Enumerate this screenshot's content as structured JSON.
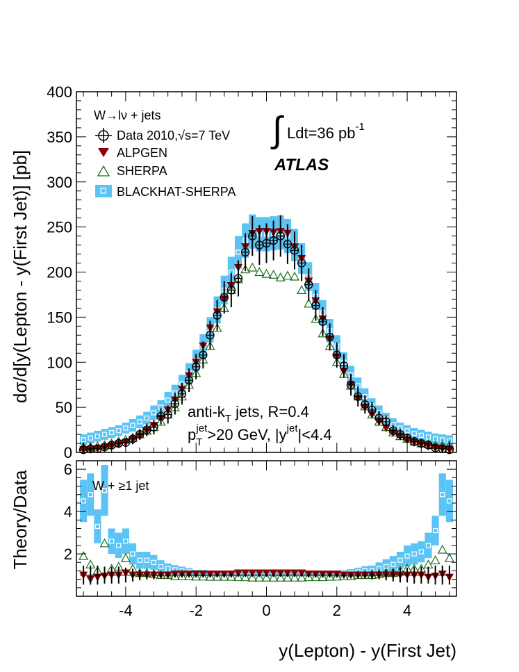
{
  "colors": {
    "data": "#000000",
    "alpgen": "#8b0000",
    "sherpa": "#1a6e1a",
    "blackhat": "#5bc4f5",
    "blackhat_marker": "#ffffff"
  },
  "legend": {
    "process_pre": "W",
    "process_post": "lν + jets",
    "data_label_pre": "Data 2010,",
    "data_label_sqrt": "√s=7 TeV",
    "alpgen_label": "ALPGEN",
    "sherpa_label": "SHERPA",
    "blackhat_label": "BLACKHAT-SHERPA"
  },
  "lumi": {
    "text": "Ldt=36 pb",
    "exponent": "-1"
  },
  "experiment": "ATLAS",
  "jets": {
    "line1": "anti-k",
    "line1_sub": "T",
    "line1_post": " jets, R=0.4",
    "line2_p": "p",
    "line2_sub": "T",
    "line2_sup": "jet",
    "line2_mid": ">20 GeV, |y",
    "line2_sup2": "jet",
    "line2_post": "|<4.4"
  },
  "ratio_label": "W + ≥1 jet",
  "chart_data": [
    {
      "type": "scatter",
      "panel": "main",
      "ylabel": "dσ/d[y(Lepton - y(First Jet)] [pb]",
      "xlim": [
        -5.4,
        5.4
      ],
      "ylim": [
        0,
        400
      ],
      "yticks": [
        "0",
        "50",
        "100",
        "150",
        "200",
        "250",
        "300",
        "350",
        "400"
      ],
      "x": [
        -5.2,
        -5.0,
        -4.8,
        -4.6,
        -4.4,
        -4.2,
        -4.0,
        -3.8,
        -3.6,
        -3.4,
        -3.2,
        -3.0,
        -2.8,
        -2.6,
        -2.4,
        -2.2,
        -2.0,
        -1.8,
        -1.6,
        -1.4,
        -1.2,
        -1.0,
        -0.8,
        -0.6,
        -0.4,
        -0.2,
        0.0,
        0.2,
        0.4,
        0.6,
        0.8,
        1.0,
        1.2,
        1.4,
        1.6,
        1.8,
        2.0,
        2.2,
        2.4,
        2.6,
        2.8,
        3.0,
        3.2,
        3.4,
        3.6,
        3.8,
        4.0,
        4.2,
        4.4,
        4.6,
        4.8,
        5.0,
        5.2
      ],
      "series": [
        {
          "name": "Data 2010,√s=7 TeV",
          "values": [
            3,
            4,
            4,
            6,
            8,
            10,
            11,
            15,
            20,
            25,
            28,
            40,
            42,
            54,
            65,
            80,
            95,
            108,
            130,
            152,
            172,
            180,
            193,
            222,
            240,
            230,
            232,
            235,
            240,
            231,
            224,
            210,
            186,
            163,
            145,
            128,
            108,
            96,
            75,
            62,
            53,
            47,
            38,
            34,
            24,
            20,
            16,
            12,
            10,
            8,
            5,
            4,
            3
          ],
          "err": [
            8,
            6,
            5,
            5,
            5,
            5,
            5,
            6,
            6,
            7,
            8,
            9,
            10,
            12,
            12,
            13,
            14,
            15,
            16,
            17,
            18,
            19,
            20,
            21,
            22,
            22,
            22,
            22,
            23,
            22,
            21,
            20,
            18,
            17,
            16,
            15,
            14,
            13,
            12,
            11,
            10,
            9,
            8,
            7,
            6,
            6,
            5,
            5,
            5,
            5,
            5,
            6,
            8
          ]
        },
        {
          "name": "ALPGEN",
          "values": [
            3,
            3,
            4,
            5,
            7,
            9,
            11,
            14,
            18,
            24,
            30,
            38,
            47,
            58,
            70,
            85,
            100,
            118,
            138,
            156,
            170,
            185,
            205,
            228,
            243,
            245,
            245,
            244,
            245,
            243,
            228,
            215,
            190,
            168,
            148,
            126,
            106,
            90,
            75,
            60,
            50,
            42,
            34,
            27,
            22,
            18,
            14,
            11,
            9,
            7,
            5,
            4,
            3
          ]
        },
        {
          "name": "SHERPA",
          "values": [
            6,
            6,
            7,
            8,
            10,
            12,
            14,
            16,
            20,
            24,
            28,
            34,
            42,
            50,
            62,
            75,
            88,
            103,
            118,
            138,
            160,
            180,
            192,
            203,
            205,
            200,
            198,
            197,
            194,
            196,
            195,
            180,
            165,
            148,
            132,
            118,
            100,
            87,
            74,
            62,
            51,
            42,
            34,
            28,
            22,
            18,
            15,
            12,
            10,
            9,
            8,
            8,
            8
          ]
        },
        {
          "name": "BLACKHAT-SHERPA",
          "values": [
            14,
            16,
            18,
            20,
            22,
            24,
            27,
            30,
            34,
            38,
            44,
            50,
            58,
            66,
            76,
            88,
            102,
            118,
            136,
            158,
            180,
            200,
            222,
            235,
            245,
            242,
            242,
            243,
            244,
            240,
            230,
            215,
            195,
            173,
            155,
            135,
            118,
            100,
            86,
            74,
            62,
            52,
            44,
            37,
            31,
            27,
            24,
            21,
            19,
            17,
            15,
            14,
            13
          ],
          "band": [
            6,
            6,
            6,
            6,
            6,
            6,
            6,
            7,
            7,
            7,
            8,
            8,
            9,
            9,
            10,
            11,
            12,
            13,
            14,
            15,
            16,
            17,
            18,
            19,
            19,
            19,
            19,
            19,
            19,
            19,
            18,
            17,
            16,
            15,
            14,
            13,
            12,
            11,
            10,
            9,
            9,
            8,
            8,
            7,
            7,
            6,
            6,
            6,
            6,
            6,
            6,
            6,
            6
          ]
        }
      ]
    },
    {
      "type": "scatter",
      "panel": "ratio",
      "xlabel": "y(Lepton) - y(First Jet)",
      "ylabel": "Theory/Data",
      "xlim": [
        -5.4,
        5.4
      ],
      "ylim": [
        0,
        6.4
      ],
      "xticks": [
        "-4",
        "-2",
        "0",
        "2",
        "4"
      ],
      "yticks": [
        "2",
        "4",
        "6"
      ],
      "x": [
        -5.2,
        -5.0,
        -4.8,
        -4.6,
        -4.4,
        -4.2,
        -4.0,
        -3.8,
        -3.6,
        -3.4,
        -3.2,
        -3.0,
        -2.8,
        -2.6,
        -2.4,
        -2.2,
        -2.0,
        -1.8,
        -1.6,
        -1.4,
        -1.2,
        -1.0,
        -0.8,
        -0.6,
        -0.4,
        -0.2,
        0.0,
        0.2,
        0.4,
        0.6,
        0.8,
        1.0,
        1.2,
        1.4,
        1.6,
        1.8,
        2.0,
        2.2,
        2.4,
        2.6,
        2.8,
        3.0,
        3.2,
        3.4,
        3.6,
        3.8,
        4.0,
        4.2,
        4.4,
        4.6,
        4.8,
        5.0,
        5.2
      ],
      "series": [
        {
          "name": "Data 2010,√s=7 TeV",
          "values": [
            1,
            1,
            1,
            1,
            1,
            1,
            1,
            1,
            1,
            1,
            1,
            1,
            1,
            1,
            1,
            1,
            1,
            1,
            1,
            1,
            1,
            1,
            1,
            1,
            1,
            1,
            1,
            1,
            1,
            1,
            1,
            1,
            1,
            1,
            1,
            1,
            1,
            1,
            1,
            1,
            1,
            1,
            1,
            1,
            1,
            1,
            1,
            1,
            1,
            1,
            1,
            1,
            1
          ],
          "err": [
            0.45,
            0.45,
            0.45,
            0.4,
            0.4,
            0.4,
            0.35,
            0.3,
            0.25,
            0.2,
            0.2,
            0.15,
            0.12,
            0.1,
            0.1,
            0.08,
            0.08,
            0.07,
            0.07,
            0.07,
            0.07,
            0.07,
            0.07,
            0.07,
            0.07,
            0.07,
            0.07,
            0.07,
            0.07,
            0.07,
            0.07,
            0.07,
            0.07,
            0.07,
            0.07,
            0.08,
            0.08,
            0.1,
            0.1,
            0.12,
            0.15,
            0.2,
            0.2,
            0.25,
            0.3,
            0.35,
            0.35,
            0.4,
            0.4,
            0.4,
            0.45,
            0.45,
            0.45
          ]
        },
        {
          "name": "ALPGEN",
          "values": [
            1.0,
            0.8,
            0.9,
            0.95,
            1.0,
            1.0,
            1.1,
            1.0,
            1.0,
            1.0,
            1.0,
            1.0,
            1.0,
            1.05,
            1.05,
            1.05,
            1.05,
            1.05,
            1.05,
            1.05,
            1.05,
            1.05,
            1.1,
            1.1,
            1.1,
            1.1,
            1.1,
            1.1,
            1.1,
            1.1,
            1.1,
            1.1,
            1.05,
            1.05,
            1.05,
            1.05,
            1.05,
            1.0,
            1.0,
            1.0,
            1.0,
            1.0,
            1.0,
            1.0,
            1.0,
            1.0,
            1.0,
            1.0,
            1.0,
            0.9,
            0.95,
            1.05,
            0.9
          ]
        },
        {
          "name": "SHERPA",
          "values": [
            1.9,
            1.5,
            1.2,
            2.5,
            1.3,
            1.4,
            1.8,
            1.3,
            1.1,
            1.1,
            1.05,
            1.0,
            1.0,
            0.95,
            0.95,
            0.95,
            0.93,
            0.93,
            0.92,
            0.92,
            0.92,
            0.92,
            0.9,
            0.9,
            0.88,
            0.88,
            0.88,
            0.88,
            0.88,
            0.88,
            0.88,
            0.88,
            0.9,
            0.9,
            0.9,
            0.92,
            0.93,
            0.95,
            0.95,
            1.0,
            1.0,
            1.0,
            1.05,
            1.1,
            1.1,
            1.2,
            1.3,
            1.3,
            1.3,
            1.5,
            1.7,
            2.2,
            1.8
          ]
        },
        {
          "name": "BLACKHAT-SHERPA",
          "values": [
            4.5,
            4.8,
            3.3,
            5.0,
            2.6,
            2.4,
            2.6,
            2.0,
            1.7,
            1.7,
            1.6,
            1.4,
            1.3,
            1.25,
            1.2,
            1.15,
            1.1,
            1.1,
            1.05,
            1.05,
            1.05,
            1.05,
            1.05,
            1.05,
            1.05,
            1.05,
            1.05,
            1.05,
            1.05,
            1.05,
            1.05,
            1.05,
            1.05,
            1.05,
            1.05,
            1.05,
            1.05,
            1.1,
            1.1,
            1.15,
            1.2,
            1.2,
            1.3,
            1.4,
            1.5,
            1.7,
            1.9,
            2.0,
            2.1,
            2.4,
            3.1,
            4.8,
            4.5
          ],
          "band": [
            1.0,
            1.0,
            0.8,
            1.2,
            0.6,
            0.6,
            0.6,
            0.5,
            0.4,
            0.4,
            0.35,
            0.3,
            0.25,
            0.22,
            0.2,
            0.18,
            0.15,
            0.15,
            0.12,
            0.12,
            0.12,
            0.12,
            0.12,
            0.12,
            0.12,
            0.12,
            0.12,
            0.12,
            0.12,
            0.12,
            0.12,
            0.12,
            0.12,
            0.12,
            0.12,
            0.12,
            0.15,
            0.15,
            0.18,
            0.2,
            0.22,
            0.25,
            0.3,
            0.35,
            0.4,
            0.4,
            0.5,
            0.5,
            0.5,
            0.6,
            0.7,
            1.0,
            1.0
          ]
        }
      ]
    }
  ]
}
